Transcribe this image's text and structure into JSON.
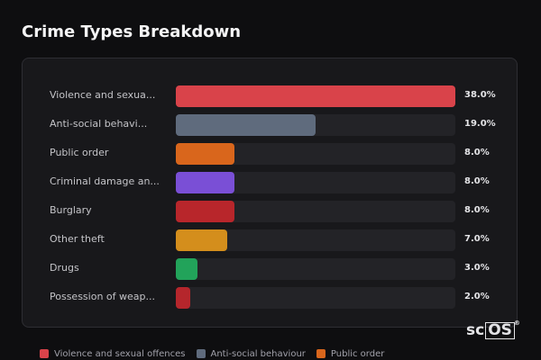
{
  "chart_data": {
    "type": "bar",
    "orientation": "horizontal",
    "title": "Crime Types Breakdown",
    "categories": [
      "Violence and sexua...",
      "Anti-social behavi...",
      "Public order",
      "Criminal damage an...",
      "Burglary",
      "Other theft",
      "Drugs",
      "Possession of weap..."
    ],
    "values": [
      38.0,
      19.0,
      8.0,
      8.0,
      8.0,
      7.0,
      3.0,
      2.0
    ],
    "value_labels": [
      "38.0%",
      "19.0%",
      "8.0%",
      "8.0%",
      "8.0%",
      "7.0%",
      "3.0%",
      "2.0%"
    ],
    "colors": [
      "#d9434a",
      "#5f6b7d",
      "#d9661c",
      "#7a4fd6",
      "#b8262b",
      "#d48e1c",
      "#22a35a",
      "#b5262c"
    ],
    "xlim": [
      0,
      38.0
    ],
    "grid": false,
    "legend": {
      "placement": "bottom-left",
      "items": [
        {
          "label": "Violence and sexual offences",
          "color": "#d9434a"
        },
        {
          "label": "Anti-social behaviour",
          "color": "#5f6b7d"
        },
        {
          "label": "Public order",
          "color": "#d9661c"
        }
      ]
    }
  },
  "logo": {
    "prefix": "sc",
    "boxed": "OS",
    "mark": "®"
  }
}
